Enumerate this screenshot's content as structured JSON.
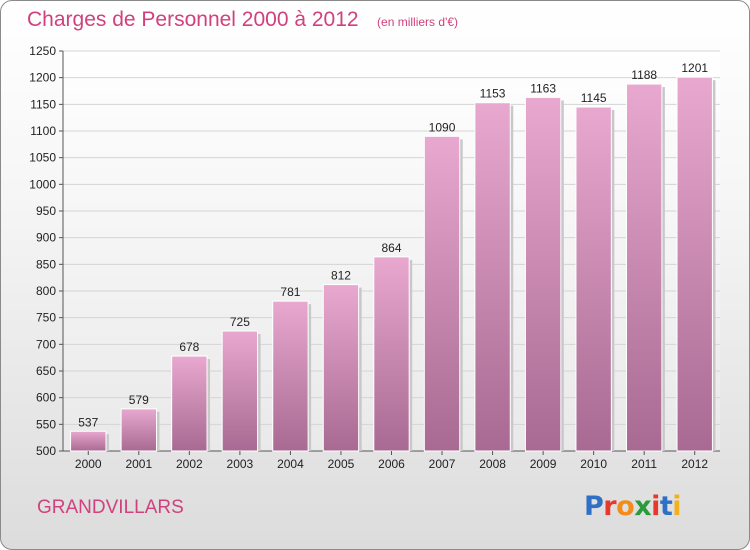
{
  "header": {
    "title": "Charges de Personnel 2000 à 2012",
    "unit": "(en milliers d'€)"
  },
  "footer": {
    "commune": "GRANDVILLARS",
    "logo": [
      "P",
      "r",
      "o",
      "x",
      "i",
      "t",
      "i"
    ]
  },
  "colors": {
    "title": "#d0417d",
    "bar_light": "#e8a8cf",
    "bar_dark": "#a86a92",
    "logo": [
      "#2f6fc6",
      "#e8382e",
      "#f28c1c",
      "#2a9a3a",
      "#e8382e",
      "#2f6fc6",
      "#f2b01c"
    ]
  },
  "chart_data": {
    "type": "bar",
    "title": "Charges de Personnel 2000 à 2012",
    "categories": [
      "2000",
      "2001",
      "2002",
      "2003",
      "2004",
      "2005",
      "2006",
      "2007",
      "2008",
      "2009",
      "2010",
      "2011",
      "2012"
    ],
    "values": [
      537,
      579,
      678,
      725,
      781,
      812,
      864,
      1090,
      1153,
      1163,
      1145,
      1188,
      1201
    ],
    "ylim": [
      500,
      1250
    ],
    "yticks": [
      500,
      550,
      600,
      650,
      700,
      750,
      800,
      850,
      900,
      950,
      1000,
      1050,
      1100,
      1150,
      1200,
      1250
    ],
    "grid": true,
    "xlabel": "",
    "ylabel": ""
  }
}
